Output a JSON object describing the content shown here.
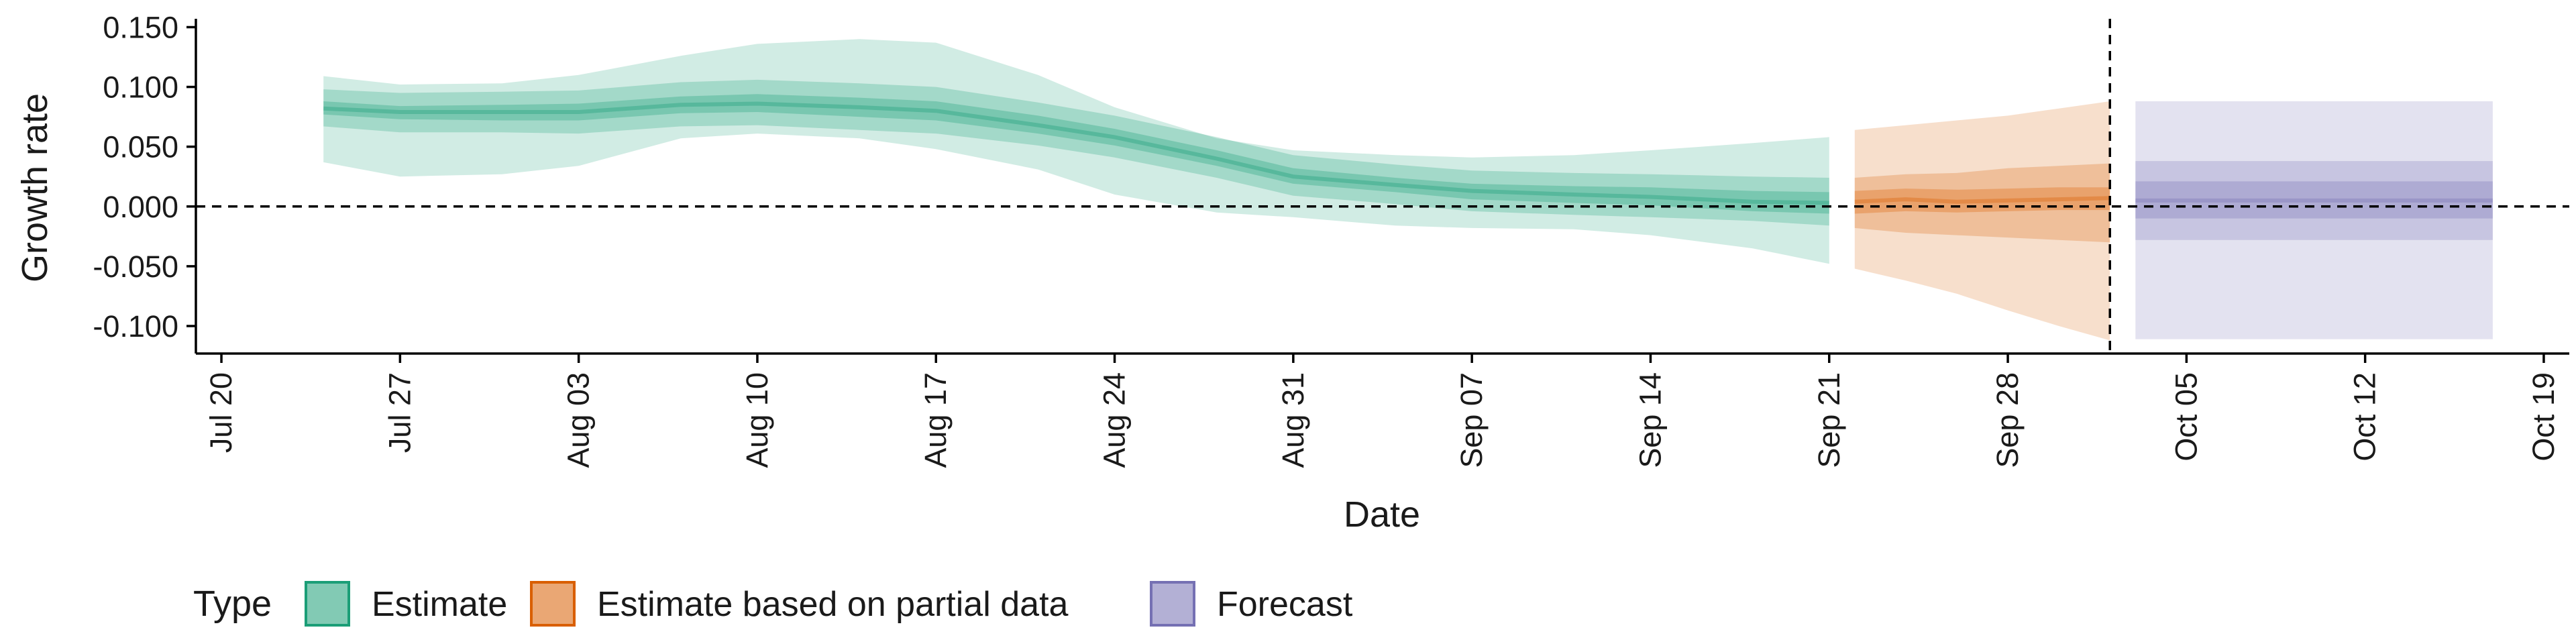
{
  "chart_data": {
    "type": "area",
    "xlabel": "Date",
    "ylabel": "Growth rate",
    "x_range": [
      "2020-07-19",
      "2020-10-20"
    ],
    "ylim": [
      -0.123,
      0.157
    ],
    "y_ticks": [
      0.15,
      0.1,
      0.05,
      0.0,
      -0.05,
      -0.1
    ],
    "y_tick_labels": [
      "0.150",
      "0.100",
      "0.050",
      "0.000",
      "-0.050",
      "-0.100"
    ],
    "x_ticks": [
      "2020-07-20",
      "2020-07-27",
      "2020-08-03",
      "2020-08-10",
      "2020-08-17",
      "2020-08-24",
      "2020-08-31",
      "2020-09-07",
      "2020-09-14",
      "2020-09-21",
      "2020-09-28",
      "2020-10-05",
      "2020-10-12",
      "2020-10-19"
    ],
    "x_tick_labels": [
      "Jul 20",
      "Jul 27",
      "Aug 03",
      "Aug 10",
      "Aug 17",
      "Aug 24",
      "Aug 31",
      "Sep 07",
      "Sep 14",
      "Sep 21",
      "Sep 28",
      "Oct 05",
      "Oct 12",
      "Oct 19"
    ],
    "reference_lines": {
      "horizontal_y": 0.0,
      "vertical_x": "2020-10-02"
    },
    "grid": false,
    "legend": {
      "title": "Type",
      "position": "bottom-left",
      "entries": [
        {
          "label": "Estimate",
          "color": "#1b9e77"
        },
        {
          "label": "Estimate based on partial data",
          "color": "#d95f02"
        },
        {
          "label": "Forecast",
          "color": "#7570b3"
        }
      ]
    },
    "series": [
      {
        "name": "Estimate",
        "color": "#1b9e77",
        "x": [
          "2020-07-24",
          "2020-07-27",
          "2020-07-31",
          "2020-08-03",
          "2020-08-07",
          "2020-08-10",
          "2020-08-14",
          "2020-08-17",
          "2020-08-21",
          "2020-08-24",
          "2020-08-28",
          "2020-08-31",
          "2020-09-04",
          "2020-09-07",
          "2020-09-11",
          "2020-09-14",
          "2020-09-18",
          "2020-09-21"
        ],
        "median": [
          0.082,
          0.079,
          0.079,
          0.079,
          0.085,
          0.086,
          0.083,
          0.08,
          0.068,
          0.058,
          0.04,
          0.025,
          0.018,
          0.013,
          0.01,
          0.008,
          0.004,
          0.003
        ],
        "lower_50": [
          0.077,
          0.073,
          0.072,
          0.072,
          0.078,
          0.079,
          0.075,
          0.072,
          0.061,
          0.051,
          0.034,
          0.019,
          0.012,
          0.006,
          0.003,
          0.001,
          -0.004,
          -0.006
        ],
        "upper_50": [
          0.088,
          0.084,
          0.085,
          0.086,
          0.092,
          0.094,
          0.091,
          0.088,
          0.076,
          0.065,
          0.047,
          0.032,
          0.024,
          0.019,
          0.017,
          0.016,
          0.013,
          0.012
        ],
        "lower_90": [
          0.067,
          0.062,
          0.062,
          0.061,
          0.067,
          0.068,
          0.064,
          0.061,
          0.051,
          0.041,
          0.024,
          0.009,
          0.002,
          -0.004,
          -0.007,
          -0.009,
          -0.012,
          -0.016
        ],
        "upper_90": [
          0.098,
          0.095,
          0.096,
          0.097,
          0.104,
          0.106,
          0.103,
          0.1,
          0.087,
          0.076,
          0.058,
          0.043,
          0.035,
          0.03,
          0.028,
          0.027,
          0.025,
          0.024
        ],
        "lower_ci": [
          0.037,
          0.025,
          0.027,
          0.034,
          0.057,
          0.061,
          0.057,
          0.048,
          0.031,
          0.01,
          -0.005,
          -0.009,
          -0.016,
          -0.018,
          -0.019,
          -0.024,
          -0.035,
          -0.048
        ],
        "upper_ci": [
          0.109,
          0.102,
          0.103,
          0.11,
          0.126,
          0.136,
          0.14,
          0.137,
          0.11,
          0.083,
          0.057,
          0.047,
          0.043,
          0.041,
          0.043,
          0.047,
          0.053,
          0.058
        ]
      },
      {
        "name": "Estimate based on partial data",
        "color": "#d95f02",
        "x": [
          "2020-09-22",
          "2020-09-24",
          "2020-09-26",
          "2020-09-28",
          "2020-09-30",
          "2020-10-02"
        ],
        "median": [
          0.004,
          0.006,
          0.004,
          0.005,
          0.006,
          0.007
        ],
        "lower_50": [
          -0.006,
          -0.004,
          -0.005,
          -0.004,
          -0.003,
          -0.003
        ],
        "upper_50": [
          0.013,
          0.015,
          0.014,
          0.015,
          0.016,
          0.016
        ],
        "lower_90": [
          -0.018,
          -0.022,
          -0.024,
          -0.026,
          -0.028,
          -0.03
        ],
        "upper_90": [
          0.024,
          0.027,
          0.028,
          0.032,
          0.034,
          0.036
        ],
        "lower_ci": [
          -0.052,
          -0.062,
          -0.073,
          -0.087,
          -0.1,
          -0.112
        ],
        "upper_ci": [
          0.064,
          0.068,
          0.072,
          0.076,
          0.082,
          0.088
        ]
      },
      {
        "name": "Forecast",
        "color": "#7570b3",
        "x": [
          "2020-10-03",
          "2020-10-17"
        ],
        "median": [
          0.005,
          0.005
        ],
        "lower_50": [
          -0.01,
          -0.01
        ],
        "upper_50": [
          0.021,
          0.021
        ],
        "lower_90": [
          -0.028,
          -0.028
        ],
        "upper_90": [
          0.038,
          0.038
        ],
        "lower_ci": [
          -0.111,
          -0.111
        ],
        "upper_ci": [
          0.088,
          0.088
        ]
      }
    ]
  }
}
